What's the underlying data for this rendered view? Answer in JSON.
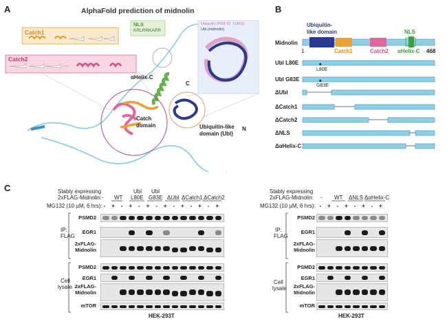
{
  "panelA": {
    "letter": "A",
    "title": "AlphaFold prediction of midnolin",
    "catch1": "Catch1",
    "catch2": "Catch2",
    "nls_label": "NLS",
    "nls_seq": "KRLRRKARR",
    "ubiquitin_legend_1": "Ubiquitin (PDB ID: 1UBQ)",
    "ubiquitin_legend_2": "Ubl (midnolin)",
    "helix_c": "αHelix-C",
    "c_term": "C",
    "n_term": "N",
    "catch_domain_1": "Catch",
    "catch_domain_2": "domain",
    "ubl_domain_1": "Ubiquitin-like",
    "ubl_domain_2": "domain (Ubl)"
  },
  "panelB": {
    "letter": "B",
    "ubl_label_1": "Ubiquitin-",
    "ubl_label_2": "like domain",
    "nls": "NLS",
    "protein": "Midnolin",
    "start": "1",
    "end": "468",
    "catch1": "Catch1",
    "catch2": "Catch2",
    "helix_c": "αHelix-C",
    "constructs": [
      "Ubl L80E",
      "Ubl G83E",
      "ΔUbl",
      "ΔCatch1",
      "ΔCatch2",
      "ΔNLS",
      "ΔαHelix-C"
    ],
    "mut1": "L80E",
    "mut2": "G83E"
  },
  "panelC": {
    "letter": "C",
    "left": {
      "stably_1": "Stably expressing",
      "stably_2": "2xFLAG-Midnolin:",
      "mg132": "MG132 (10 µM, 6 hrs):",
      "lanes": [
        "-",
        "WT",
        "Ubl L80E",
        "Ubl G83E",
        "ΔUbl",
        "ΔCatch1",
        "ΔCatch2"
      ],
      "lanes_top": [
        "",
        "",
        "Ubl",
        "Ubl",
        "",
        "",
        ""
      ],
      "lanes_bottom": [
        "-",
        "WT",
        "L80E",
        "G83E",
        "ΔUbl",
        "ΔCatch1",
        "ΔCatch2"
      ],
      "ip_1": "IP:",
      "ip_2": "FLAG",
      "cell_1": "Cell",
      "cell_2": "lysate",
      "blot_ip": [
        "PSMD2",
        "EGR1",
        "2xFLAG-\nMidnolin"
      ],
      "blot_lys": [
        "PSMD2",
        "EGR1",
        "2xFLAG-\nMidnolin",
        "mTOR"
      ],
      "cell_line": "HEK-293T"
    },
    "right": {
      "stably_1": "Stably expressing",
      "stably_2": "2xFLAG-Midnolin:",
      "mg132": "MG132 (10 µM, 6 hrs):",
      "lanes": [
        "-",
        "WT",
        "ΔNLS",
        "ΔαHelix-C"
      ],
      "ip_1": "IP:",
      "ip_2": "FLAG",
      "cell_1": "Cell",
      "cell_2": "lysate",
      "blot_ip": [
        "PSMD2",
        "EGR1",
        "2xFLAG-\nMidnolin"
      ],
      "blot_lys": [
        "PSMD2",
        "EGR1",
        "2xFLAG-\nMidnolin",
        "mTOR"
      ],
      "cell_line": "HEK-293T"
    },
    "minus": "-",
    "plus": "+"
  },
  "colors": {
    "ubl": "#2a3a8f",
    "catch1": "#f0a030",
    "catch2": "#e4679c",
    "nls": "#3aa13a",
    "helix": "#66b24a",
    "backbone": "#8fd0e6"
  }
}
